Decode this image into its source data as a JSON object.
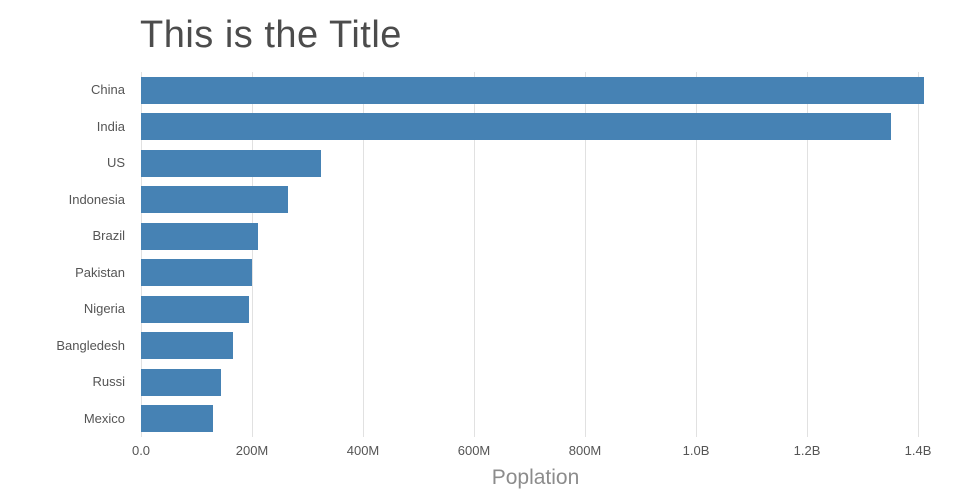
{
  "title": "This is the Title",
  "colors": {
    "bar": "#4682b4",
    "gridline": "#e1e1e1",
    "tick_text": "#555555",
    "title_text": "#4c4c4c",
    "axis_label_text": "#8c8c8c"
  },
  "chart_data": {
    "type": "bar",
    "orientation": "horizontal",
    "title": "This is the Title",
    "xlabel": "Poplation",
    "ylabel": "",
    "categories": [
      "China",
      "India",
      "US",
      "Indonesia",
      "Brazil",
      "Pakistan",
      "Nigeria",
      "Bangledesh",
      "Russi",
      "Mexico"
    ],
    "values": [
      1410000000,
      1352000000,
      325000000,
      265000000,
      210000000,
      200000000,
      195000000,
      165000000,
      145000000,
      130000000
    ],
    "xlim": [
      0,
      1420000000
    ],
    "xticks": {
      "values": [
        0,
        200000000,
        400000000,
        600000000,
        800000000,
        1000000000,
        1200000000,
        1400000000
      ],
      "labels": [
        "0.0",
        "200M",
        "400M",
        "600M",
        "800M",
        "1.0B",
        "1.2B",
        "1.4B"
      ]
    },
    "grid": true,
    "legend": false
  }
}
